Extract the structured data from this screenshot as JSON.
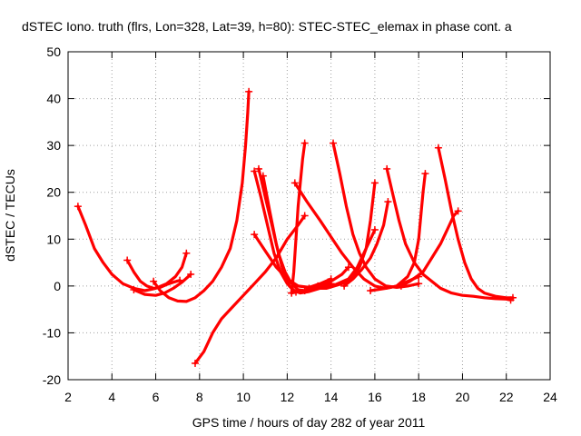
{
  "chart_data": {
    "type": "scatter",
    "title": "dSTEC Iono. truth (flrs, Lon=328, Lat=39, h=80): STEC-STEC_elemax in phase cont. a",
    "xlabel": "GPS time / hours of day 282 of year 2011",
    "ylabel": "dSTEC  / TECUs",
    "xlim": [
      2,
      24
    ],
    "ylim": [
      -20,
      50
    ],
    "xticks": [
      2,
      4,
      6,
      8,
      10,
      12,
      14,
      16,
      18,
      20,
      22,
      24
    ],
    "yticks": [
      -20,
      -10,
      0,
      10,
      20,
      30,
      40,
      50
    ],
    "xtick_labels": [
      "2",
      "4",
      "6",
      "8",
      "10",
      "12",
      "14",
      "16",
      "18",
      "20",
      "22",
      "24"
    ],
    "ytick_labels": [
      "-20",
      "-10",
      "0",
      "10",
      "20",
      "30",
      "40",
      "50"
    ],
    "grid": true,
    "marker": "+",
    "color": "#ff0000",
    "series": [
      {
        "points": [
          [
            2.45,
            17
          ],
          [
            2.8,
            13
          ],
          [
            3.2,
            8
          ],
          [
            3.6,
            5
          ],
          [
            4.0,
            2.5
          ],
          [
            4.5,
            0.5
          ],
          [
            5.0,
            -0.5
          ],
          [
            5.5,
            -1
          ],
          [
            6.0,
            -0.5
          ],
          [
            6.5,
            0.5
          ],
          [
            6.9,
            2
          ],
          [
            7.2,
            4
          ],
          [
            7.4,
            7
          ]
        ]
      },
      {
        "points": [
          [
            4.7,
            5.5
          ],
          [
            5.0,
            3
          ],
          [
            5.3,
            1
          ],
          [
            5.6,
            0
          ],
          [
            5.9,
            -0.5
          ],
          [
            6.2,
            -0.3
          ],
          [
            6.5,
            0.3
          ],
          [
            6.8,
            0.8
          ],
          [
            7.1,
            1.2
          ]
        ]
      },
      {
        "points": [
          [
            5.0,
            -0.8
          ],
          [
            5.5,
            -1.8
          ],
          [
            6.0,
            -2
          ],
          [
            6.4,
            -1.5
          ],
          [
            6.8,
            -0.5
          ],
          [
            7.2,
            0.8
          ],
          [
            7.6,
            2.5
          ]
        ]
      },
      {
        "points": [
          [
            5.9,
            1
          ],
          [
            6.2,
            -1
          ],
          [
            6.6,
            -2.5
          ],
          [
            7.0,
            -3.2
          ],
          [
            7.4,
            -3.3
          ],
          [
            7.8,
            -2.5
          ],
          [
            8.2,
            -1
          ],
          [
            8.6,
            1
          ],
          [
            9.0,
            4
          ],
          [
            9.4,
            8
          ],
          [
            9.7,
            14
          ],
          [
            9.95,
            22
          ],
          [
            10.1,
            30
          ],
          [
            10.2,
            37
          ],
          [
            10.25,
            41.5
          ]
        ]
      },
      {
        "points": [
          [
            7.8,
            -16.5
          ],
          [
            8.2,
            -14
          ],
          [
            8.6,
            -10
          ],
          [
            9.0,
            -7
          ],
          [
            9.5,
            -4.5
          ],
          [
            10.0,
            -2
          ],
          [
            10.5,
            0.5
          ],
          [
            11.0,
            3
          ],
          [
            11.5,
            6
          ],
          [
            12.0,
            10
          ],
          [
            12.5,
            13
          ],
          [
            12.8,
            15
          ]
        ]
      },
      {
        "points": [
          [
            10.5,
            24.5
          ],
          [
            10.8,
            19
          ],
          [
            11.1,
            13
          ],
          [
            11.4,
            7
          ],
          [
            11.7,
            3
          ],
          [
            12.0,
            0.5
          ],
          [
            12.3,
            -1
          ],
          [
            12.6,
            -1.5
          ],
          [
            13.0,
            -1.2
          ],
          [
            13.5,
            -0.5
          ],
          [
            13.8,
            0
          ],
          [
            14.0,
            0.5
          ]
        ]
      },
      {
        "points": [
          [
            10.7,
            25
          ],
          [
            11.0,
            19
          ],
          [
            11.3,
            13
          ],
          [
            11.6,
            7
          ],
          [
            11.9,
            3
          ],
          [
            12.2,
            0.5
          ],
          [
            12.5,
            -0.8
          ],
          [
            12.8,
            -1
          ]
        ]
      },
      {
        "points": [
          [
            10.9,
            23.5
          ],
          [
            11.2,
            16
          ],
          [
            11.5,
            9
          ],
          [
            11.8,
            3.5
          ],
          [
            12.1,
            0
          ],
          [
            12.4,
            -1.3
          ]
        ]
      },
      {
        "points": [
          [
            10.5,
            11
          ],
          [
            11.0,
            7.5
          ],
          [
            11.5,
            4
          ],
          [
            12.0,
            1.5
          ],
          [
            12.5,
            0
          ],
          [
            13.0,
            -0.3
          ],
          [
            13.5,
            0.5
          ],
          [
            14.0,
            1.5
          ]
        ]
      },
      {
        "points": [
          [
            12.2,
            -1.5
          ],
          [
            12.3,
            3
          ],
          [
            12.4,
            10
          ],
          [
            12.5,
            17
          ],
          [
            12.6,
            22
          ],
          [
            12.7,
            27
          ],
          [
            12.8,
            30.5
          ]
        ]
      },
      {
        "points": [
          [
            12.35,
            22
          ],
          [
            12.9,
            18
          ],
          [
            13.5,
            14
          ],
          [
            14.0,
            10.5
          ],
          [
            14.5,
            7
          ],
          [
            15.0,
            4
          ],
          [
            15.5,
            1.5
          ],
          [
            16.0,
            0
          ],
          [
            16.5,
            -0.5
          ],
          [
            17.0,
            0
          ],
          [
            17.5,
            1
          ],
          [
            18.0,
            2
          ]
        ]
      },
      {
        "points": [
          [
            12.2,
            -1.5
          ],
          [
            12.8,
            -1
          ],
          [
            13.5,
            0
          ],
          [
            14.0,
            1
          ],
          [
            14.5,
            2.5
          ],
          [
            14.8,
            4
          ]
        ]
      },
      {
        "points": [
          [
            14.1,
            30.5
          ],
          [
            14.4,
            24
          ],
          [
            14.7,
            17
          ],
          [
            15.0,
            11
          ],
          [
            15.3,
            7
          ],
          [
            15.6,
            4
          ],
          [
            16.0,
            1.5
          ],
          [
            16.5,
            0
          ],
          [
            17.0,
            -0.3
          ],
          [
            17.5,
            0
          ],
          [
            18.0,
            0.5
          ]
        ]
      },
      {
        "points": [
          [
            13.0,
            -0.5
          ],
          [
            13.8,
            -0.5
          ],
          [
            14.5,
            0.5
          ],
          [
            15.0,
            1.8
          ],
          [
            15.3,
            4
          ],
          [
            15.6,
            8
          ],
          [
            15.8,
            14
          ],
          [
            15.95,
            20
          ],
          [
            16.0,
            22
          ]
        ]
      },
      {
        "points": [
          [
            13.4,
            0
          ],
          [
            14.2,
            0.3
          ],
          [
            14.8,
            1.5
          ],
          [
            15.2,
            4
          ],
          [
            15.5,
            7
          ],
          [
            15.8,
            10
          ],
          [
            16.0,
            12
          ]
        ]
      },
      {
        "points": [
          [
            14.6,
            0
          ],
          [
            15.0,
            1.5
          ],
          [
            15.4,
            3.5
          ],
          [
            15.8,
            6
          ],
          [
            16.1,
            9
          ],
          [
            16.4,
            13
          ],
          [
            16.6,
            18
          ]
        ]
      },
      {
        "points": [
          [
            16.55,
            25
          ],
          [
            16.8,
            20
          ],
          [
            17.1,
            14
          ],
          [
            17.4,
            9
          ],
          [
            17.8,
            5
          ],
          [
            18.2,
            2.5
          ],
          [
            18.6,
            1
          ],
          [
            19.0,
            -0.5
          ],
          [
            19.5,
            -1.5
          ],
          [
            20.0,
            -2
          ],
          [
            20.5,
            -2.2
          ],
          [
            21.0,
            -2.5
          ],
          [
            21.5,
            -2.7
          ],
          [
            22.0,
            -2.8
          ],
          [
            22.2,
            -3
          ]
        ]
      },
      {
        "points": [
          [
            15.8,
            -1
          ],
          [
            16.5,
            -0.5
          ],
          [
            17.0,
            0
          ],
          [
            17.5,
            2
          ],
          [
            17.8,
            5
          ],
          [
            18.0,
            10
          ],
          [
            18.1,
            15
          ],
          [
            18.2,
            20
          ],
          [
            18.3,
            24
          ]
        ]
      },
      {
        "points": [
          [
            17.2,
            0
          ],
          [
            17.6,
            1
          ],
          [
            18.2,
            3
          ],
          [
            18.6,
            6
          ],
          [
            19.0,
            9
          ],
          [
            19.3,
            12
          ],
          [
            19.6,
            15
          ],
          [
            19.8,
            16
          ]
        ]
      },
      {
        "points": [
          [
            18.9,
            29.5
          ],
          [
            19.2,
            23
          ],
          [
            19.5,
            16
          ],
          [
            19.8,
            10
          ],
          [
            20.1,
            5
          ],
          [
            20.4,
            1.5
          ],
          [
            20.7,
            -0.5
          ],
          [
            21.0,
            -1.5
          ],
          [
            21.5,
            -2.2
          ],
          [
            22.0,
            -2.5
          ],
          [
            22.3,
            -2.5
          ]
        ]
      }
    ]
  }
}
